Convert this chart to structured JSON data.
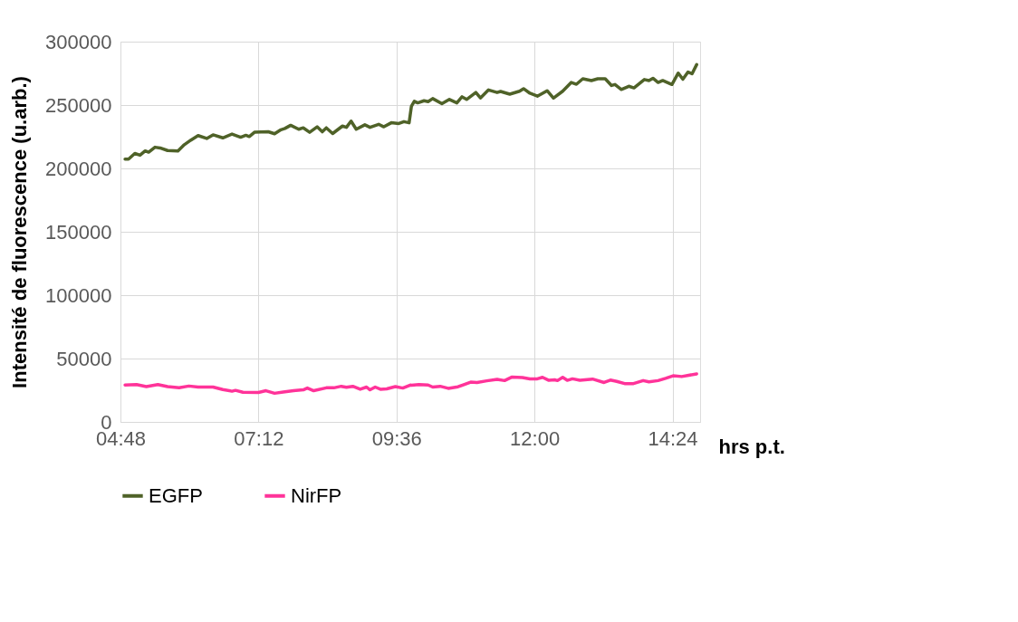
{
  "chart_data": {
    "type": "line",
    "ylabel": "Intensité de fluorescence (u.arb.)",
    "xlabel": "hrs p.t.",
    "xlim": [
      4.8,
      14.88
    ],
    "ylim": [
      0,
      300000
    ],
    "xticks": [
      {
        "value": 4.8,
        "label": "04:48"
      },
      {
        "value": 7.2,
        "label": "07:12"
      },
      {
        "value": 9.6,
        "label": "09:36"
      },
      {
        "value": 12.0,
        "label": "12:00"
      },
      {
        "value": 14.4,
        "label": "14:24"
      }
    ],
    "yticks": [
      0,
      50000,
      100000,
      150000,
      200000,
      250000,
      300000
    ],
    "grid": true,
    "legend": "bottom",
    "series": [
      {
        "name": "EGFP",
        "color": "#4f6228",
        "x": [
          4.88,
          4.94,
          5.05,
          5.14,
          5.23,
          5.29,
          5.4,
          5.49,
          5.62,
          5.8,
          5.91,
          6.02,
          6.15,
          6.3,
          6.41,
          6.58,
          6.74,
          6.89,
          6.98,
          7.04,
          7.13,
          7.37,
          7.48,
          7.59,
          7.66,
          7.76,
          7.9,
          7.98,
          8.09,
          8.22,
          8.31,
          8.38,
          8.49,
          8.66,
          8.73,
          8.81,
          8.9,
          9.05,
          9.14,
          9.29,
          9.38,
          9.51,
          9.64,
          9.73,
          9.82,
          9.86,
          9.91,
          9.97,
          10.08,
          10.15,
          10.23,
          10.39,
          10.52,
          10.65,
          10.74,
          10.82,
          10.98,
          11.06,
          11.2,
          11.35,
          11.41,
          11.57,
          11.74,
          11.81,
          11.92,
          12.05,
          12.22,
          12.33,
          12.49,
          12.64,
          12.73,
          12.84,
          12.99,
          13.1,
          13.23,
          13.34,
          13.4,
          13.51,
          13.64,
          13.73,
          13.91,
          13.99,
          14.06,
          14.15,
          14.23,
          14.39,
          14.5,
          14.58,
          14.67,
          14.74,
          14.82
        ],
        "values": [
          207300,
          207300,
          211800,
          210400,
          213800,
          212800,
          216700,
          216100,
          214100,
          213800,
          218700,
          222200,
          225900,
          223600,
          226500,
          224100,
          227100,
          224600,
          226100,
          225100,
          228500,
          228900,
          227300,
          230500,
          231500,
          234000,
          230900,
          232000,
          228500,
          232800,
          228900,
          232000,
          227500,
          233400,
          232400,
          237300,
          230900,
          234400,
          232400,
          234800,
          232800,
          236000,
          235400,
          236900,
          236000,
          249100,
          253000,
          251700,
          253400,
          252700,
          255100,
          251100,
          254400,
          251700,
          256500,
          254400,
          259900,
          255600,
          261900,
          259900,
          260700,
          258600,
          260900,
          262900,
          259300,
          257000,
          261300,
          255500,
          260900,
          267800,
          266400,
          270700,
          269300,
          270700,
          270700,
          265400,
          266200,
          262300,
          264800,
          263500,
          270100,
          269300,
          271100,
          267800,
          269300,
          266200,
          275200,
          270300,
          276000,
          274700,
          281900
        ]
      },
      {
        "name": "NirFP",
        "color": "#ff3399",
        "x": [
          4.88,
          5.08,
          5.25,
          5.45,
          5.62,
          5.82,
          5.99,
          6.15,
          6.41,
          6.58,
          6.74,
          6.8,
          6.93,
          7.2,
          7.33,
          7.48,
          7.63,
          7.81,
          7.98,
          8.05,
          8.16,
          8.38,
          8.51,
          8.64,
          8.73,
          8.84,
          8.97,
          9.08,
          9.14,
          9.23,
          9.32,
          9.43,
          9.58,
          9.71,
          9.84,
          9.86,
          9.99,
          10.15,
          10.23,
          10.36,
          10.5,
          10.67,
          10.89,
          11.0,
          11.17,
          11.35,
          11.48,
          11.61,
          11.79,
          11.92,
          12.05,
          12.14,
          12.25,
          12.35,
          12.4,
          12.49,
          12.57,
          12.66,
          12.79,
          13.01,
          13.21,
          13.32,
          13.43,
          13.58,
          13.71,
          13.89,
          13.99,
          14.15,
          14.28,
          14.41,
          14.56,
          14.82
        ],
        "values": [
          29100,
          29500,
          27900,
          29500,
          27900,
          26900,
          28300,
          27500,
          27500,
          25500,
          24200,
          24900,
          23400,
          23200,
          24600,
          22600,
          23600,
          24600,
          25300,
          26700,
          24600,
          26900,
          26900,
          28100,
          27300,
          28100,
          25800,
          27500,
          25300,
          27500,
          25800,
          26100,
          27900,
          26700,
          29100,
          28900,
          29500,
          29100,
          27500,
          28100,
          26500,
          27700,
          31400,
          31100,
          32400,
          33600,
          32600,
          35400,
          35000,
          34000,
          34000,
          35200,
          32800,
          33200,
          32600,
          35200,
          32800,
          34000,
          32800,
          33800,
          31100,
          33000,
          32000,
          30100,
          30100,
          32600,
          31600,
          32600,
          34400,
          36400,
          35800,
          37900
        ]
      }
    ]
  }
}
